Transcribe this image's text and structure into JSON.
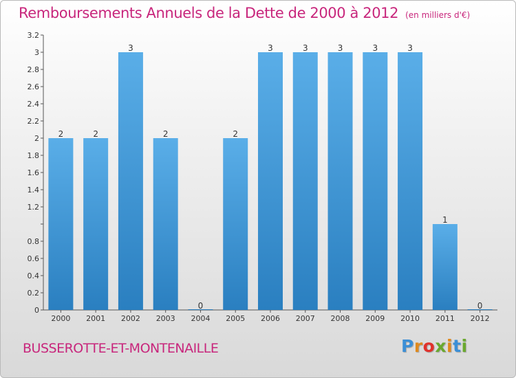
{
  "header": {
    "title": "Remboursements Annuels de la Dette de 2000 à 2012",
    "subtitle": "(en milliers d'€)"
  },
  "footer": {
    "commune": "BUSSEROTTE-ET-MONTENAILLE",
    "logo_letters": [
      {
        "char": "P",
        "color": "#3b8fd6"
      },
      {
        "char": "r",
        "color": "#e08a1e"
      },
      {
        "char": "o",
        "color": "#e0322c"
      },
      {
        "char": "x",
        "color": "#6aa92e"
      },
      {
        "char": "i",
        "color": "#e08a1e"
      },
      {
        "char": "t",
        "color": "#3b8fd6"
      },
      {
        "char": "i",
        "color": "#6aa92e"
      }
    ]
  },
  "chart_data": {
    "type": "bar",
    "categories": [
      "2000",
      "2001",
      "2002",
      "2003",
      "2004",
      "2005",
      "2006",
      "2007",
      "2008",
      "2009",
      "2010",
      "2011",
      "2012"
    ],
    "values": [
      2,
      2,
      3,
      2,
      0,
      2,
      3,
      3,
      3,
      3,
      3,
      1,
      0
    ],
    "data_labels": [
      "2",
      "2",
      "3",
      "2",
      "0",
      "2",
      "3",
      "3",
      "3",
      "3",
      "3",
      "1",
      "0"
    ],
    "ylim": [
      0,
      3.2
    ],
    "yticks": [
      0,
      0.2,
      0.4,
      0.6,
      0.8,
      1,
      1.2,
      1.4,
      1.6,
      1.8,
      2,
      2.2,
      2.4,
      2.6,
      2.8,
      3,
      3.2
    ],
    "ytick_labels": [
      "0",
      "0.2",
      "0.4",
      "0.6",
      "0.8",
      "",
      "1.2",
      "1.4",
      "1.6",
      "1.8",
      "2",
      "2.2",
      "2.4",
      "2.6",
      "2.8",
      "3",
      "3.2"
    ],
    "bar_color_top": "#5aaee8",
    "bar_color_bottom": "#2a7fc0",
    "grid": false
  }
}
